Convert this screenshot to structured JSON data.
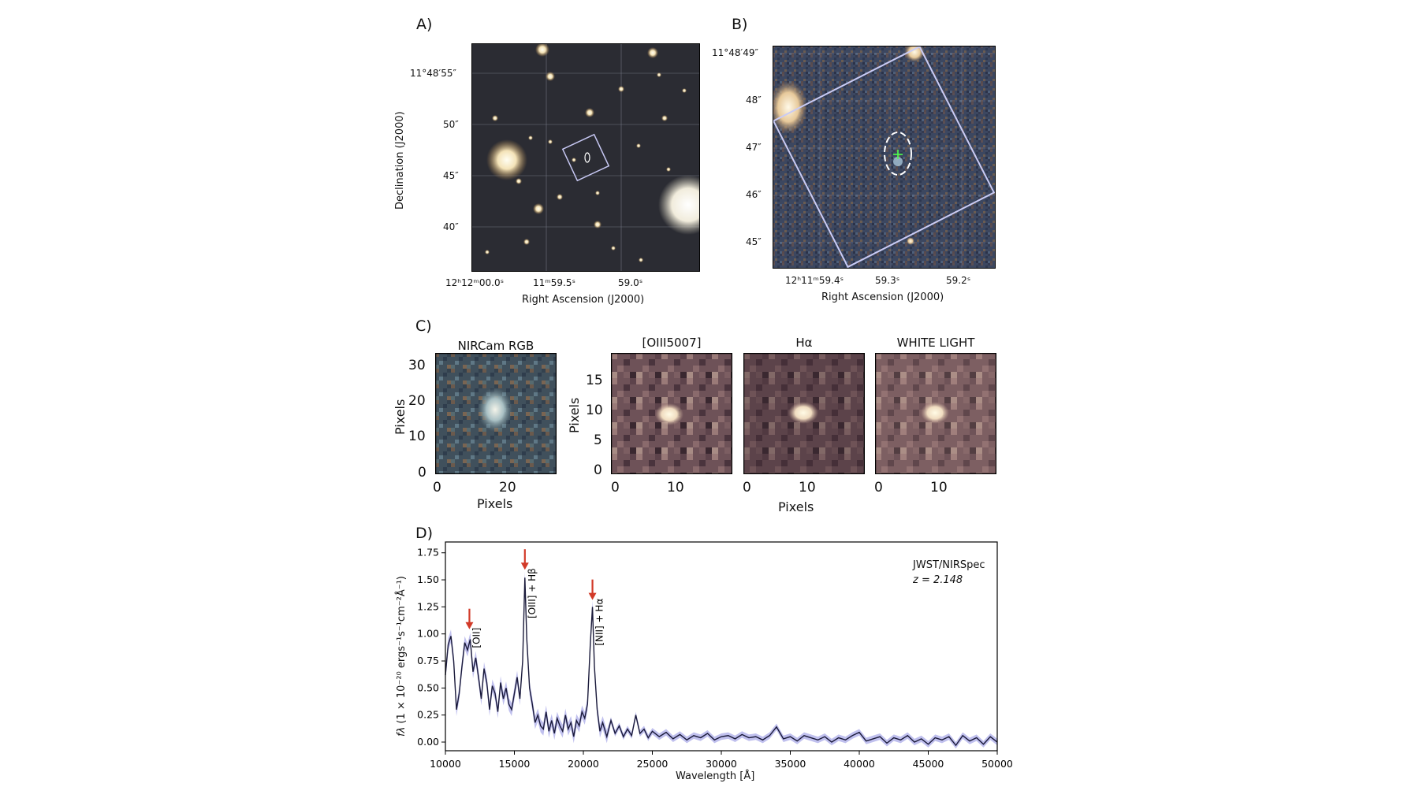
{
  "panels": {
    "a": {
      "letter": "A)",
      "dec_ticks": [
        "11°48′55″",
        "50″",
        "45″",
        "40″"
      ],
      "ra_ticks": [
        "12ʰ12ᵐ00.0ˢ",
        "11ᵐ59.5ˢ",
        "59.0ˢ"
      ],
      "xlabel": "Right Ascension (J2000)",
      "ylabel": "Declination (J2000)"
    },
    "b": {
      "letter": "B)",
      "dec_ticks": [
        "11°48′49″",
        "48″",
        "47″",
        "46″",
        "45″"
      ],
      "ra_ticks": [
        "12ʰ11ᵐ59.4ˢ",
        "59.3ˢ",
        "59.2ˢ"
      ],
      "xlabel": "Right Ascension (J2000)"
    },
    "c": {
      "letter": "C)",
      "titles": [
        "NIRCam RGB",
        "[OIII5007]",
        "Hα",
        "WHITE LIGHT"
      ],
      "rgb_yticks": [
        "30",
        "20",
        "10",
        "0"
      ],
      "rgb_xticks": [
        "0",
        "20"
      ],
      "cube_yticks": [
        "15",
        "10",
        "5",
        "0"
      ],
      "cube_xticks": [
        "0",
        "10"
      ],
      "xlabel": "Pixels",
      "ylabel": "Pixels"
    },
    "d": {
      "letter": "D)",
      "instrument": "JWST/NIRSpec",
      "redshift": "z = 2.148",
      "xlabel": "Wavelength [Å]",
      "ylabel": "f_λ (1 × 10⁻²⁰ ergs⁻¹s⁻¹cm⁻²Å⁻¹)",
      "ylabel_prefix": "fλ",
      "ylabel_rest": " (1 × 10⁻²⁰ ergs⁻¹s⁻¹cm⁻²Å⁻¹)",
      "line_labels": [
        "[OII]",
        "[OIII] + Hβ",
        "[NII] + Hα"
      ]
    }
  },
  "chart_data": {
    "type": "line",
    "title": "",
    "xlabel": "Wavelength [Å]",
    "ylabel": "f_λ (1 × 10⁻²⁰ ergs⁻¹s⁻¹cm⁻²Å⁻¹)",
    "xlim": [
      10000,
      50000
    ],
    "ylim": [
      -0.08,
      1.85
    ],
    "xticks": [
      10000,
      15000,
      20000,
      25000,
      30000,
      35000,
      40000,
      45000,
      50000
    ],
    "yticks": [
      0.0,
      0.25,
      0.5,
      0.75,
      1.0,
      1.25,
      1.5,
      1.75
    ],
    "ytick_labels": [
      "0.00",
      "0.25",
      "0.50",
      "0.75",
      "1.00",
      "1.25",
      "1.50",
      "1.75"
    ],
    "grid": false,
    "annotations": [
      {
        "text": "[OII]",
        "x": 11740,
        "arrow_y": 1.0
      },
      {
        "text": "[OIII] + Hβ",
        "x": 15760,
        "arrow_y": 1.55
      },
      {
        "text": "[NII] + Hα",
        "x": 20660,
        "arrow_y": 1.27
      }
    ],
    "series": [
      {
        "color": "#1a1a3a",
        "error_color": "#8d8ce0",
        "x": [
          10000,
          10200,
          10400,
          10600,
          10800,
          11000,
          11200,
          11400,
          11600,
          11800,
          12000,
          12200,
          12400,
          12600,
          12800,
          13000,
          13200,
          13400,
          13600,
          13800,
          14000,
          14200,
          14400,
          14600,
          14800,
          15000,
          15200,
          15400,
          15600,
          15760,
          15900,
          16100,
          16300,
          16500,
          16700,
          16900,
          17100,
          17300,
          17500,
          17700,
          17900,
          18100,
          18300,
          18500,
          18700,
          18900,
          19100,
          19300,
          19500,
          19700,
          19900,
          20100,
          20300,
          20500,
          20660,
          20800,
          21000,
          21200,
          21400,
          21700,
          22000,
          22300,
          22600,
          22900,
          23200,
          23500,
          23800,
          24100,
          24400,
          24700,
          25000,
          25500,
          26000,
          26500,
          27000,
          27500,
          28000,
          28500,
          29000,
          29500,
          30000,
          30500,
          31000,
          31500,
          32000,
          32500,
          33000,
          33500,
          34000,
          34500,
          35000,
          35500,
          36000,
          36500,
          37000,
          37500,
          38000,
          38500,
          39000,
          39500,
          40000,
          40500,
          41000,
          41500,
          42000,
          42500,
          43000,
          43500,
          44000,
          44500,
          45000,
          45500,
          46000,
          46500,
          47000,
          47500,
          48000,
          48500,
          49000,
          49500,
          50000
        ],
        "y": [
          0.62,
          0.9,
          0.98,
          0.75,
          0.3,
          0.45,
          0.7,
          0.92,
          0.85,
          0.95,
          0.65,
          0.78,
          0.6,
          0.4,
          0.68,
          0.55,
          0.3,
          0.52,
          0.45,
          0.28,
          0.55,
          0.4,
          0.5,
          0.35,
          0.3,
          0.45,
          0.6,
          0.4,
          0.75,
          1.52,
          0.95,
          0.5,
          0.35,
          0.18,
          0.25,
          0.15,
          0.12,
          0.28,
          0.1,
          0.2,
          0.08,
          0.22,
          0.15,
          0.1,
          0.25,
          0.12,
          0.18,
          0.05,
          0.2,
          0.15,
          0.28,
          0.22,
          0.35,
          0.9,
          1.25,
          0.7,
          0.3,
          0.1,
          0.18,
          0.05,
          0.2,
          0.08,
          0.15,
          0.05,
          0.12,
          0.06,
          0.25,
          0.08,
          0.12,
          0.04,
          0.1,
          0.05,
          0.09,
          0.03,
          0.07,
          0.02,
          0.06,
          0.04,
          0.08,
          0.02,
          0.05,
          0.06,
          0.03,
          0.07,
          0.04,
          0.05,
          0.02,
          0.06,
          0.14,
          0.03,
          0.05,
          0.01,
          0.06,
          0.04,
          0.02,
          0.05,
          0.0,
          0.04,
          0.02,
          0.06,
          0.09,
          0.01,
          0.03,
          0.05,
          -0.01,
          0.04,
          0.02,
          0.06,
          0.0,
          0.03,
          -0.02,
          0.04,
          0.02,
          0.05,
          -0.03,
          0.06,
          0.01,
          0.04,
          -0.02,
          0.05,
          0.0
        ]
      }
    ]
  }
}
